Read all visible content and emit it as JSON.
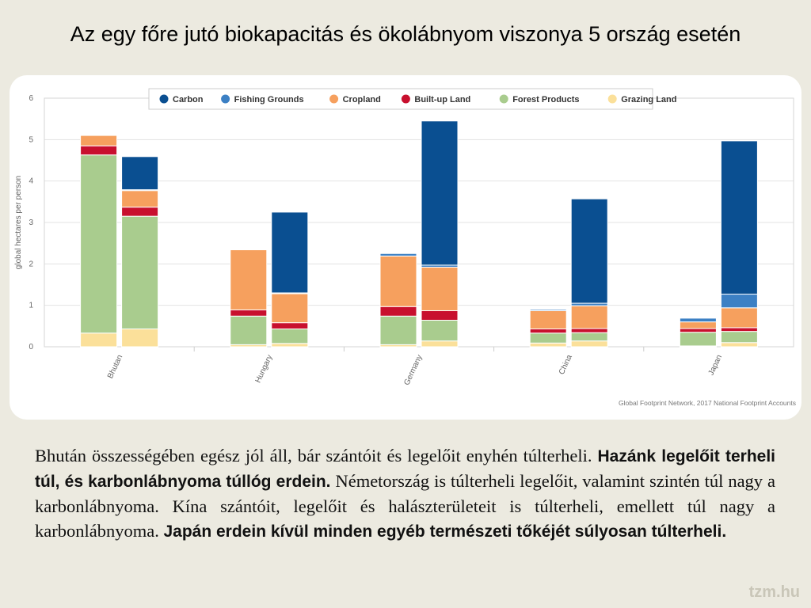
{
  "slide": {
    "title": "Az egy főre jutó biokapacitás és ökolábnyom viszonya 5 ország esetén",
    "paragraph": [
      {
        "text": "Bhután összességében egész jól áll, bár szántóit és legelőit enyhén túlterheli. ",
        "bold": false
      },
      {
        "text": "Hazánk legelőit terheli túl, és karbonlábnyoma túllóg erdein.",
        "bold": true
      },
      {
        "text": " Németország is túlterheli legelőit, valamint szintén túl nagy a karbonlábnyoma. Kína szántóit, legelőit és halászterületeit is túlterheli, emellett túl nagy a karbonlábnyoma. ",
        "bold": false
      },
      {
        "text": "Japán erdein kívül minden egyéb természeti tőkéjét súlyosan túlterheli.",
        "bold": true
      }
    ],
    "watermark": "tzm.hu"
  },
  "chart_data": {
    "type": "bar",
    "stacked": true,
    "grouped": true,
    "ylabel": "global hectares per person",
    "ylim": [
      0,
      6
    ],
    "yticks": [
      "0",
      "1",
      "2",
      "3",
      "4",
      "5",
      "6"
    ],
    "grid": true,
    "legend_position": "top",
    "categories": [
      "Bhutan",
      "Hungary",
      "Germany",
      "China",
      "Japan"
    ],
    "bars_per_category": [
      "biocapacity",
      "footprint"
    ],
    "source": "Global Footprint Network, 2017 National Footprint Accounts",
    "series": [
      {
        "name": "Carbon",
        "color": "#0a4f91",
        "biocapacity": [
          0,
          0,
          0,
          0,
          0
        ],
        "footprint": [
          0.8,
          1.95,
          3.48,
          2.52,
          3.7
        ]
      },
      {
        "name": "Fishing Grounds",
        "color": "#3c80c4",
        "biocapacity": [
          0,
          0,
          0.06,
          0.03,
          0.09
        ],
        "footprint": [
          0.02,
          0.02,
          0.05,
          0.06,
          0.33
        ]
      },
      {
        "name": "Cropland",
        "color": "#f6a05e",
        "biocapacity": [
          0.25,
          1.45,
          1.22,
          0.44,
          0.16
        ],
        "footprint": [
          0.4,
          0.7,
          1.05,
          0.55,
          0.48
        ]
      },
      {
        "name": "Built-up Land",
        "color": "#c8102e",
        "biocapacity": [
          0.22,
          0.15,
          0.23,
          0.1,
          0.09
        ],
        "footprint": [
          0.22,
          0.15,
          0.23,
          0.1,
          0.09
        ]
      },
      {
        "name": "Forest Products",
        "color": "#a9cc8e",
        "biocapacity": [
          4.3,
          0.69,
          0.69,
          0.24,
          0.33
        ],
        "footprint": [
          2.72,
          0.35,
          0.5,
          0.2,
          0.27
        ]
      },
      {
        "name": "Grazing Land",
        "color": "#fbe09a",
        "biocapacity": [
          0.33,
          0.05,
          0.05,
          0.09,
          0.02
        ],
        "footprint": [
          0.43,
          0.08,
          0.14,
          0.14,
          0.1
        ]
      }
    ]
  }
}
